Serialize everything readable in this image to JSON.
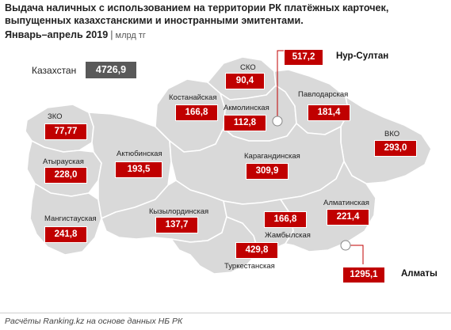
{
  "header": {
    "title": "Выдача наличных с использованием на территории РК платёжных карточек, выпущенных казахстанскими и иностранными эмитентами.",
    "period": "Январь–апрель 2019",
    "separator": "|",
    "unit": "млрд тг"
  },
  "total": {
    "label": "Казахстан",
    "value": "4726,9"
  },
  "regions": [
    {
      "name": "СКО",
      "value": "90,4"
    },
    {
      "name": "Костанайская",
      "value": "166,8"
    },
    {
      "name": "Акмолинская",
      "value": "112,8"
    },
    {
      "name": "Павлодарская",
      "value": "181,4"
    },
    {
      "name": "ЗКО",
      "value": "77,77"
    },
    {
      "name": "Атырауская",
      "value": "228,0"
    },
    {
      "name": "Актюбинская",
      "value": "193,5"
    },
    {
      "name": "Карагандинская",
      "value": "309,9"
    },
    {
      "name": "ВКО",
      "value": "293,0"
    },
    {
      "name": "Мангистауская",
      "value": "241,8"
    },
    {
      "name": "Кызылординская",
      "value": "137,7"
    },
    {
      "name": "Жамбылская",
      "value": "166,8"
    },
    {
      "name": "Алматинская",
      "value": "221,4"
    },
    {
      "name": "Туркестанская",
      "value": "429,8"
    }
  ],
  "cities": [
    {
      "name": "Нур-Султан",
      "value": "517,2"
    },
    {
      "name": "Алматы",
      "value": "1295,1"
    }
  ],
  "colors": {
    "value_box": "#c00000",
    "total_box": "#595959",
    "map_fill": "#d9d9d9",
    "border": "#ffffff"
  },
  "footer": {
    "source": "Расчёты Ranking.kz на основе данных НБ РК"
  }
}
